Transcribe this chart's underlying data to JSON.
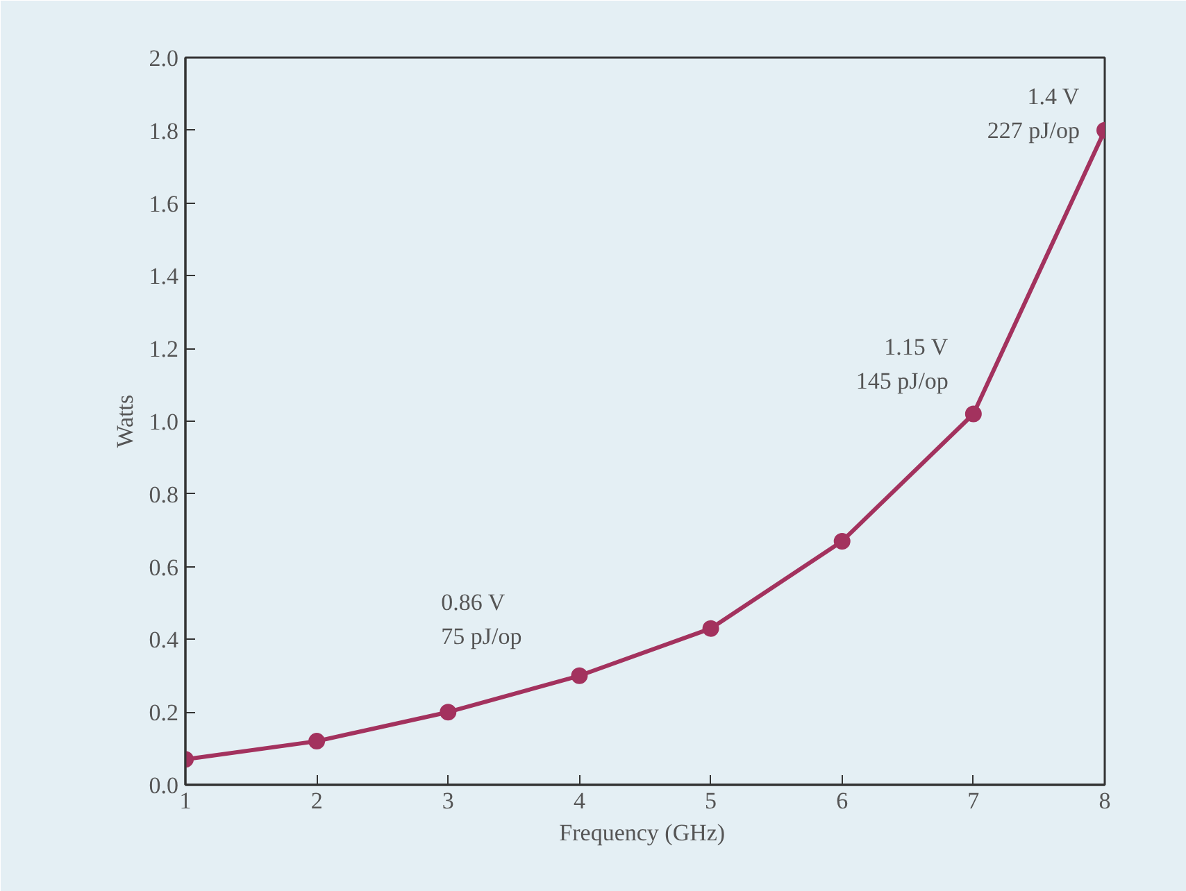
{
  "chart_data": {
    "type": "line",
    "xlabel": "Frequency  (GHz)",
    "ylabel": "Watts",
    "x": [
      1,
      2,
      3,
      4,
      5,
      6,
      7,
      8
    ],
    "series": [
      {
        "color": "#a3325e",
        "values": [
          0.07,
          0.12,
          0.2,
          0.3,
          0.43,
          0.67,
          1.02,
          1.8
        ]
      }
    ],
    "xlim": [
      1,
      8
    ],
    "ylim": [
      0,
      2
    ],
    "xticks": [
      1,
      2,
      3,
      4,
      5,
      6,
      7,
      8
    ],
    "yticks": [
      {
        "value": 0,
        "label": "0.0"
      },
      0.2,
      0.4,
      0.6,
      0.8,
      {
        "value": 1,
        "label": "1.0"
      },
      1.2,
      1.4,
      1.6,
      1.8,
      {
        "value": 2,
        "label": "2.0"
      }
    ],
    "marker": "circle",
    "line_style": "solid",
    "grid": false,
    "annotations": [
      {
        "text": "0.86 V\n75 pJ/op",
        "x": 3,
        "y": 0.2
      },
      {
        "text": "1.15 V\n145 pJ/op",
        "x": 7,
        "y": 1.02
      },
      {
        "text": "1.4 V\n227 pJ/op",
        "x": 8,
        "y": 1.8
      }
    ]
  }
}
